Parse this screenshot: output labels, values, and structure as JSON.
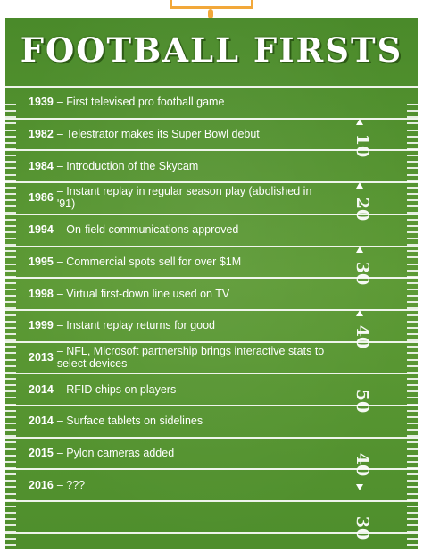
{
  "title": "FOOTBALL FIRSTS",
  "events": [
    {
      "year": "1939",
      "text": "– First televised pro football game"
    },
    {
      "year": "1982",
      "text": "– Telestrator makes its Super Bowl debut"
    },
    {
      "year": "1984",
      "text": "– Introduction of the Skycam"
    },
    {
      "year": "1986",
      "text": "– Instant replay in regular season play (abolished in '91)"
    },
    {
      "year": "1994",
      "text": "– On-field communications approved"
    },
    {
      "year": "1995",
      "text": "– Commercial spots sell for over $1M"
    },
    {
      "year": "1998",
      "text": "– Virtual first-down line used on TV"
    },
    {
      "year": "1999",
      "text": "– Instant replay returns for good"
    },
    {
      "year": "2013",
      "text": "– NFL, Microsoft partnership brings interactive stats to select devices"
    },
    {
      "year": "2014",
      "text": "– RFID chips on players"
    },
    {
      "year": "2014",
      "text": "– Surface tablets on sidelines"
    },
    {
      "year": "2015",
      "text": "– Pylon cameras added"
    },
    {
      "year": "2016",
      "text": "– ???"
    }
  ],
  "yard_numbers": [
    "10",
    "20",
    "30",
    "40",
    "50",
    "40",
    "30"
  ],
  "colors": {
    "field": "#5d9a35",
    "goalpost": "#f2a83a",
    "lines": "#ffffff"
  }
}
